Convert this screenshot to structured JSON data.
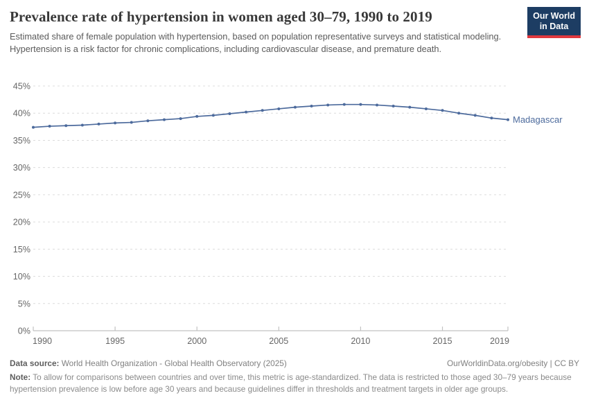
{
  "header": {
    "title": "Prevalence rate of hypertension in women aged 30–79, 1990 to 2019",
    "subtitle": "Estimated share of female population with hypertension, based on population representative surveys and statistical modeling. Hypertension is a risk factor for chronic complications, including cardiovascular disease, and premature death.",
    "logo": {
      "line1": "Our World",
      "line2": "in Data"
    }
  },
  "chart_data": {
    "type": "line",
    "title": "Prevalence rate of hypertension in women aged 30–79, 1990 to 2019",
    "x": [
      1990,
      1991,
      1992,
      1993,
      1994,
      1995,
      1996,
      1997,
      1998,
      1999,
      2000,
      2001,
      2002,
      2003,
      2004,
      2005,
      2006,
      2007,
      2008,
      2009,
      2010,
      2011,
      2012,
      2013,
      2014,
      2015,
      2016,
      2017,
      2018,
      2019
    ],
    "series": [
      {
        "name": "Madagascar",
        "color": "#4c6a9c",
        "values": [
          37.4,
          37.6,
          37.7,
          37.8,
          38.0,
          38.2,
          38.3,
          38.6,
          38.8,
          39.0,
          39.4,
          39.6,
          39.9,
          40.2,
          40.5,
          40.8,
          41.1,
          41.3,
          41.5,
          41.6,
          41.6,
          41.5,
          41.3,
          41.1,
          40.8,
          40.5,
          40.0,
          39.6,
          39.1,
          38.8
        ]
      }
    ],
    "xlim": [
      1990,
      2019
    ],
    "ylim": [
      0,
      45
    ],
    "xticks": [
      1990,
      1995,
      2000,
      2005,
      2010,
      2015,
      2019
    ],
    "yticks": [
      0,
      5,
      10,
      15,
      20,
      25,
      30,
      35,
      40,
      45
    ],
    "y_tick_suffix": "%",
    "xlabel": "",
    "ylabel": "",
    "grid": "horizontal-dashed",
    "legend": "line-end-label"
  },
  "colors": {
    "line": "#4c6a9c",
    "grid": "#dcdcdc",
    "axis": "#c2c2c2",
    "tick_text": "#666666",
    "logo_bg": "#1d3d63",
    "logo_stripe": "#e0383e"
  },
  "footer": {
    "datasource_label": "Data source:",
    "datasource_text": "World Health Organization - Global Health Observatory (2025)",
    "rights": "OurWorldinData.org/obesity | CC BY",
    "note_label": "Note:",
    "note_text": "To allow for comparisons between countries and over time, this metric is age-standardized. The data is restricted to those aged 30–79 years because hypertension prevalence is low before age 30 years and because guidelines differ in thresholds and treatment targets in older age groups."
  }
}
